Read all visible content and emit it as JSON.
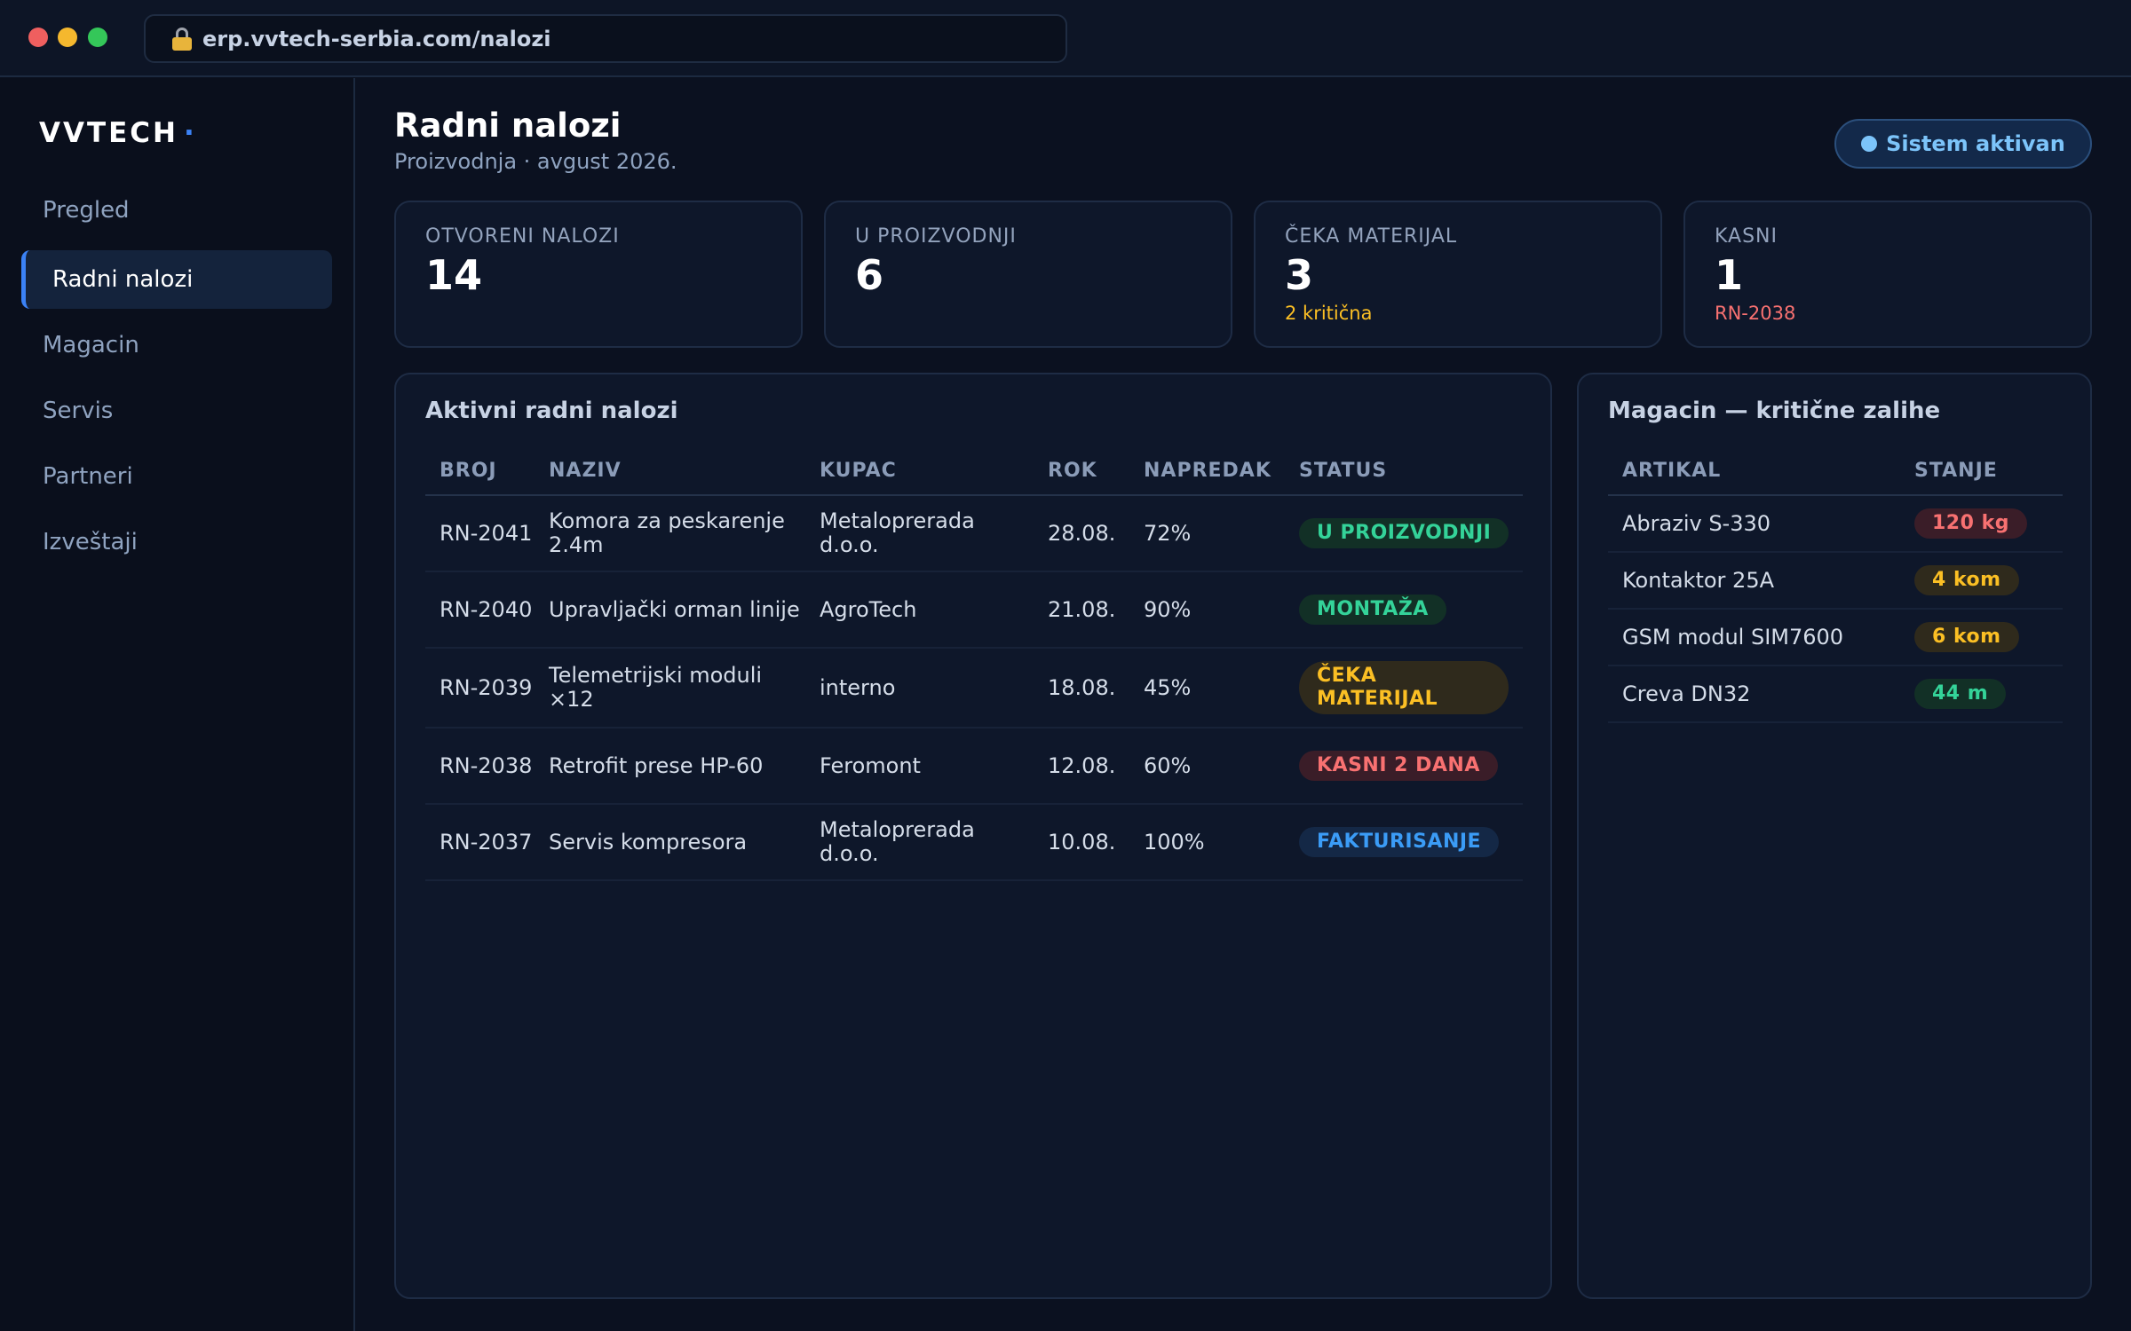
{
  "browser": {
    "url": "erp.vvtech-serbia.com/nalozi"
  },
  "sidebar": {
    "logo": "VVTECH",
    "logo_dot": "·",
    "items": [
      {
        "label": "Pregled"
      },
      {
        "label": "Radni nalozi"
      },
      {
        "label": "Magacin"
      },
      {
        "label": "Servis"
      },
      {
        "label": "Partneri"
      },
      {
        "label": "Izveštaji"
      }
    ]
  },
  "header": {
    "title": "Radni nalozi",
    "subtitle": "Proizvodnja · avgust 2026.",
    "status": "Sistem aktivan"
  },
  "kpis": [
    {
      "label": "OTVORENI NALOZI",
      "value": "14",
      "note": ""
    },
    {
      "label": "U PROIZVODNJI",
      "value": "6",
      "note": ""
    },
    {
      "label": "ČEKA MATERIJAL",
      "value": "3",
      "note": "2 kritična"
    },
    {
      "label": "KASNI",
      "value": "1",
      "note": "RN-2038"
    }
  ],
  "orders": {
    "title": "Aktivni radni nalozi",
    "columns": [
      "BROJ",
      "NAZIV",
      "KUPAC",
      "ROK",
      "NAPREDAK",
      "STATUS"
    ],
    "rows": [
      {
        "broj": "RN-2041",
        "naziv": "Komora za peskarenje 2.4m",
        "kupac": "Metaloprerada d.o.o.",
        "rok": "28.08.",
        "napredak": "72%",
        "status": "U PROIZVODNJI",
        "status_color": "#34d399"
      },
      {
        "broj": "RN-2040",
        "naziv": "Upravljački orman linije",
        "kupac": "AgroTech",
        "rok": "21.08.",
        "napredak": "90%",
        "status": "MONTAŽA",
        "status_color": "#34d399"
      },
      {
        "broj": "RN-2039",
        "naziv": "Telemetrijski moduli ×12",
        "kupac": "interno",
        "rok": "18.08.",
        "napredak": "45%",
        "status": "ČEKA MATERIJAL",
        "status_color": "#fbbf24"
      },
      {
        "broj": "RN-2038",
        "naziv": "Retrofit prese HP-60",
        "kupac": "Feromont",
        "rok": "12.08.",
        "napredak": "60%",
        "status": "KASNI 2 DANA",
        "status_color": "#f87171"
      },
      {
        "broj": "RN-2037",
        "naziv": "Servis kompresora",
        "kupac": "Metaloprerada d.o.o.",
        "rok": "10.08.",
        "napredak": "100%",
        "status": "FAKTURISANJE",
        "status_color": "#3b9cf6"
      }
    ]
  },
  "stock": {
    "title": "Magacin — kritične zalihe",
    "columns": [
      "ARTIKAL",
      "STANJE"
    ],
    "rows": [
      {
        "artikal": "Abraziv S-330",
        "stanje": "120 kg",
        "color": "#f87171"
      },
      {
        "artikal": "Kontaktor 25A",
        "stanje": "4 kom",
        "color": "#fbbf24"
      },
      {
        "artikal": "GSM modul SIM7600",
        "stanje": "6 kom",
        "color": "#fbbf24"
      },
      {
        "artikal": "Creva DN32",
        "stanje": "44 m",
        "color": "#34d399"
      }
    ]
  }
}
